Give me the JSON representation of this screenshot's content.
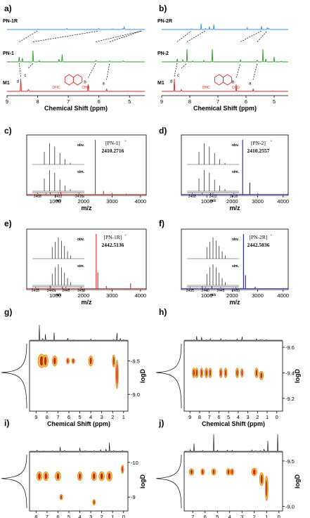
{
  "panels": {
    "a": {
      "label": "a)",
      "xlabel": "Chemical Shift (ppm)",
      "xlim": [
        9,
        4.5
      ],
      "ticks": [
        "9",
        "8",
        "7",
        "6",
        "5"
      ],
      "traces": [
        {
          "name": "PN-1R",
          "color": "#3b8fe0",
          "peaks": [
            [
              8.0,
              0.15
            ],
            [
              7.05,
              0.55
            ],
            [
              6.0,
              0.6
            ],
            [
              5.55,
              0.35
            ],
            [
              5.22,
              0.55
            ],
            [
              5.18,
              1.0
            ],
            [
              4.6,
              0.05
            ]
          ]
        },
        {
          "name": "PN-1",
          "color": "#2e9e2e",
          "peaks": [
            [
              8.6,
              0.4
            ],
            [
              8.5,
              0.3
            ],
            [
              8.15,
              0.9
            ],
            [
              7.95,
              0.45
            ],
            [
              7.3,
              0.5
            ],
            [
              7.2,
              0.35
            ],
            [
              6.1,
              0.7
            ],
            [
              5.65,
              0.55
            ],
            [
              5.2,
              0.6
            ]
          ]
        },
        {
          "name": "M1",
          "color": "#e02020",
          "peaks": [
            [
              8.55,
              0.6
            ],
            [
              8.3,
              1.0
            ],
            [
              6.35,
              0.55
            ],
            [
              5.75,
              0.45
            ],
            [
              5.05,
              0.08
            ]
          ]
        }
      ],
      "peak_letters": [
        "d",
        "c",
        "b",
        "a"
      ],
      "structure_labels": {
        "left": "OHC",
        "right": "CHO"
      }
    },
    "b": {
      "label": "b)",
      "xlabel": "Chemical Shift (ppm)",
      "xlim": [
        9,
        4.5
      ],
      "ticks": [
        "9",
        "8",
        "7",
        "6",
        "5"
      ],
      "traces": [
        {
          "name": "PN-2R",
          "color": "#3b8fe0",
          "peaks": [
            [
              7.95,
              0.35
            ],
            [
              7.6,
              0.7
            ],
            [
              7.45,
              0.9
            ],
            [
              7.3,
              0.8
            ],
            [
              7.15,
              0.6
            ],
            [
              5.95,
              0.5
            ],
            [
              5.45,
              0.4
            ],
            [
              5.25,
              0.85
            ],
            [
              5.2,
              1.0
            ]
          ]
        },
        {
          "name": "PN-2",
          "color": "#2e9e2e",
          "peaks": [
            [
              8.45,
              0.55
            ],
            [
              8.25,
              0.8
            ],
            [
              8.1,
              0.6
            ],
            [
              7.9,
              0.5
            ],
            [
              7.5,
              0.45
            ],
            [
              7.2,
              0.6
            ],
            [
              6.2,
              0.4
            ],
            [
              5.6,
              0.9
            ],
            [
              5.4,
              0.6
            ],
            [
              5.3,
              0.55
            ],
            [
              5.0,
              0.4
            ],
            [
              4.75,
              0.35
            ]
          ]
        },
        {
          "name": "M1",
          "color": "#e02020",
          "peaks": [
            [
              8.55,
              0.6
            ],
            [
              8.3,
              1.0
            ],
            [
              6.35,
              0.55
            ],
            [
              5.75,
              0.45
            ],
            [
              5.05,
              0.08
            ]
          ]
        }
      ],
      "peak_letters": [
        "d",
        "c",
        "b",
        "a"
      ],
      "structure_labels": {
        "left": "OHC",
        "right": "CHO"
      }
    },
    "c": {
      "label": "c)",
      "ion": "[PN-1]",
      "charge": "+",
      "mass": "2410.2716",
      "color": "#e02020",
      "xlabel": "m/z",
      "xlim": [
        0,
        4200
      ],
      "ticks": [
        "1000",
        "2000",
        "3000",
        "4000"
      ],
      "peaks": [
        [
          680,
          0.03
        ],
        [
          830,
          0.04
        ],
        [
          1200,
          0.05
        ],
        [
          2410,
          1.0
        ],
        [
          2700,
          0.07
        ],
        [
          3000,
          0.03
        ],
        [
          3500,
          0.02
        ]
      ],
      "inset": {
        "obs_label": "obv.",
        "sim_label": "sim.",
        "xlabel": "m/z",
        "ticks": [
          "2408",
          "2412",
          "2416"
        ],
        "xlim": [
          2407,
          2417
        ],
        "obs": [
          [
            2409.3,
            0.6
          ],
          [
            2410.3,
            1.0
          ],
          [
            2411.3,
            0.85
          ],
          [
            2412.3,
            0.55
          ],
          [
            2413.3,
            0.25
          ],
          [
            2414.3,
            0.08
          ]
        ],
        "sim": [
          [
            2409.3,
            0.6
          ],
          [
            2410.3,
            1.0
          ],
          [
            2411.3,
            0.88
          ],
          [
            2412.3,
            0.55
          ],
          [
            2413.3,
            0.27
          ],
          [
            2414.3,
            0.1
          ]
        ]
      }
    },
    "d": {
      "label": "d)",
      "ion": "[PN-2]",
      "charge": "+",
      "mass": "2410.2557",
      "color": "#1a1ab8",
      "xlabel": "m/z",
      "xlim": [
        0,
        4200
      ],
      "ticks": [
        "1000",
        "2000",
        "3000",
        "4000"
      ],
      "peaks": [
        [
          820,
          0.03
        ],
        [
          1150,
          0.03
        ],
        [
          2410,
          1.0
        ],
        [
          2690,
          0.22
        ],
        [
          3000,
          0.02
        ]
      ],
      "inset": {
        "obs_label": "obv.",
        "sim_label": "sim.",
        "xlabel": "m/z",
        "ticks": [
          "2408",
          "2412",
          "2416"
        ],
        "xlim": [
          2407,
          2417
        ],
        "obs": [
          [
            2409.3,
            0.6
          ],
          [
            2410.3,
            1.0
          ],
          [
            2411.3,
            0.85
          ],
          [
            2412.3,
            0.55
          ],
          [
            2413.3,
            0.25
          ],
          [
            2414.3,
            0.08
          ]
        ],
        "sim": [
          [
            2409.3,
            0.6
          ],
          [
            2410.3,
            1.0
          ],
          [
            2411.3,
            0.88
          ],
          [
            2412.3,
            0.55
          ],
          [
            2413.3,
            0.27
          ],
          [
            2414.3,
            0.1
          ]
        ]
      }
    },
    "e": {
      "label": "e)",
      "ion": "[PN-1R]",
      "charge": "+",
      "mass": "2442.5136",
      "color": "#e02020",
      "xlabel": "m/z",
      "xlim": [
        0,
        4200
      ],
      "ticks": [
        "1000",
        "2000",
        "3000",
        "4000"
      ],
      "peaks": [
        [
          820,
          0.06
        ],
        [
          1250,
          0.04
        ],
        [
          2442,
          1.0
        ],
        [
          2500,
          0.3
        ],
        [
          2800,
          0.05
        ],
        [
          3650,
          0.1
        ]
      ],
      "inset": {
        "obs_label": "obv.",
        "sim_label": "sim.",
        "xlabel": "m/z",
        "ticks": [
          "2435",
          "2440",
          "2445",
          "2450"
        ],
        "xlim": [
          2434,
          2451
        ],
        "obs": [
          [
            2440.5,
            0.55
          ],
          [
            2441.5,
            0.8
          ],
          [
            2442.5,
            1.0
          ],
          [
            2443.5,
            0.85
          ],
          [
            2444.5,
            0.6
          ],
          [
            2445.5,
            0.35
          ],
          [
            2446.5,
            0.15
          ]
        ],
        "sim": [
          [
            2440.5,
            0.55
          ],
          [
            2441.5,
            0.85
          ],
          [
            2442.5,
            1.0
          ],
          [
            2443.5,
            0.85
          ],
          [
            2444.5,
            0.6
          ],
          [
            2445.5,
            0.35
          ],
          [
            2446.5,
            0.15
          ]
        ]
      }
    },
    "f": {
      "label": "f)",
      "ion": "[PN-2R]",
      "charge": "+",
      "mass": "2442.5036",
      "color": "#1a1ab8",
      "xlabel": "m/z",
      "xlim": [
        0,
        4200
      ],
      "ticks": [
        "1000",
        "2000",
        "3000",
        "4000"
      ],
      "peaks": [
        [
          820,
          0.05
        ],
        [
          1200,
          0.05
        ],
        [
          2442,
          1.0
        ],
        [
          2520,
          0.25
        ],
        [
          2900,
          0.04
        ]
      ],
      "inset": {
        "obs_label": "obv.",
        "sim_label": "sim.",
        "xlabel": "m/z",
        "ticks": [
          "2435",
          "2440",
          "2445",
          "2450"
        ],
        "xlim": [
          2434,
          2451
        ],
        "obs": [
          [
            2440.5,
            0.55
          ],
          [
            2441.5,
            0.8
          ],
          [
            2442.5,
            1.0
          ],
          [
            2443.5,
            0.85
          ],
          [
            2444.5,
            0.6
          ],
          [
            2445.5,
            0.35
          ],
          [
            2446.5,
            0.15
          ]
        ],
        "sim": [
          [
            2440.5,
            0.55
          ],
          [
            2441.5,
            0.85
          ],
          [
            2442.5,
            1.0
          ],
          [
            2443.5,
            0.85
          ],
          [
            2444.5,
            0.6
          ],
          [
            2445.5,
            0.35
          ],
          [
            2446.5,
            0.15
          ]
        ]
      }
    },
    "g": {
      "label": "g)",
      "xlabel": "Chemical Shift (ppm)",
      "ylabel": "logD",
      "xlim": [
        9.6,
        0.6
      ],
      "ylim": [
        -8.75,
        -9.8
      ],
      "xticks": [
        "9",
        "8",
        "7",
        "6",
        "5",
        "4",
        "3",
        "2",
        "1"
      ],
      "yticks": [
        "-9.5",
        "-9.0"
      ],
      "spectrum": [
        [
          8.7,
          0.8
        ],
        [
          8.4,
          1.0
        ],
        [
          8.15,
          0.7
        ],
        [
          7.35,
          0.4
        ],
        [
          6.1,
          0.25
        ],
        [
          5.6,
          0.2
        ],
        [
          4.0,
          0.35
        ],
        [
          3.6,
          0.15
        ],
        [
          1.9,
          0.5
        ],
        [
          1.6,
          0.85
        ],
        [
          1.3,
          0.6
        ],
        [
          1.0,
          0.3
        ]
      ],
      "spots": [
        [
          8.5,
          -9.5,
          0.5,
          0.17
        ],
        [
          8.15,
          -9.5,
          0.35,
          0.15
        ],
        [
          7.3,
          -9.5,
          0.3,
          0.12
        ],
        [
          6.1,
          -9.5,
          0.12,
          0.06
        ],
        [
          5.6,
          -9.5,
          0.12,
          0.05
        ],
        [
          4.0,
          -9.5,
          0.25,
          0.12
        ],
        [
          1.9,
          -9.5,
          0.1,
          0.15
        ],
        [
          1.6,
          -9.3,
          0.1,
          0.4
        ]
      ]
    },
    "h": {
      "label": "h)",
      "xlabel": "Chemical Shift (ppm)",
      "ylabel": "logD",
      "xlim": [
        9.6,
        -0.6
      ],
      "ylim": [
        -9.1,
        -9.65
      ],
      "xticks": [
        "9",
        "8",
        "7",
        "6",
        "5",
        "4",
        "3",
        "2",
        "1",
        "0"
      ],
      "yticks": [
        "-9.6",
        "-9.4",
        "-9.2"
      ],
      "spectrum": [
        [
          8.6,
          0.5
        ],
        [
          8.3,
          0.6
        ],
        [
          7.8,
          0.4
        ],
        [
          7.3,
          0.45
        ],
        [
          6.9,
          0.3
        ],
        [
          5.8,
          0.25
        ],
        [
          5.3,
          0.3
        ],
        [
          4.1,
          0.3
        ],
        [
          3.6,
          0.25
        ],
        [
          2.1,
          0.35
        ],
        [
          1.7,
          0.55
        ],
        [
          1.5,
          0.45
        ],
        [
          1.1,
          0.3
        ]
      ],
      "spots": [
        [
          8.6,
          -9.4,
          0.15,
          0.06
        ],
        [
          8.3,
          -9.4,
          0.15,
          0.06
        ],
        [
          7.8,
          -9.4,
          0.12,
          0.06
        ],
        [
          7.3,
          -9.4,
          0.15,
          0.06
        ],
        [
          6.9,
          -9.4,
          0.12,
          0.06
        ],
        [
          5.8,
          -9.4,
          0.12,
          0.06
        ],
        [
          5.3,
          -9.4,
          0.12,
          0.06
        ],
        [
          4.1,
          -9.4,
          0.15,
          0.06
        ],
        [
          3.6,
          -9.4,
          0.1,
          0.05
        ],
        [
          2.1,
          -9.4,
          0.15,
          0.06
        ],
        [
          1.6,
          -9.38,
          0.25,
          0.05
        ]
      ]
    },
    "i": {
      "label": "i)",
      "xlabel": "Chemical Shift (ppm)",
      "ylabel": "logD",
      "xlim": [
        8.6,
        -0.4
      ],
      "ylim": [
        -8.6,
        -10.3
      ],
      "xticks": [
        "8",
        "7",
        "6",
        "5",
        "4",
        "3",
        "2",
        "1",
        "0"
      ],
      "yticks": [
        "-10",
        "-9"
      ],
      "spectrum": [
        [
          7.9,
          0.3
        ],
        [
          7.3,
          0.25
        ],
        [
          6.5,
          0.35
        ],
        [
          5.8,
          0.5
        ],
        [
          5.4,
          0.85
        ],
        [
          4.0,
          0.4
        ],
        [
          3.5,
          0.35
        ],
        [
          2.7,
          0.6
        ],
        [
          2.1,
          0.45
        ],
        [
          1.6,
          0.7
        ],
        [
          1.3,
          1.0
        ],
        [
          0.9,
          0.5
        ],
        [
          0.1,
          0.8
        ]
      ],
      "spots": [
        [
          7.7,
          -9.6,
          0.35,
          0.2
        ],
        [
          7.1,
          -9.6,
          0.3,
          0.2
        ],
        [
          6.0,
          -9.6,
          0.35,
          0.2
        ],
        [
          5.7,
          -9.0,
          0.12,
          0.1
        ],
        [
          4.0,
          -9.6,
          0.25,
          0.2
        ],
        [
          2.7,
          -9.6,
          0.3,
          0.2
        ],
        [
          2.7,
          -8.85,
          0.1,
          0.1
        ],
        [
          2.0,
          -9.6,
          0.35,
          0.2
        ],
        [
          1.3,
          -9.6,
          0.35,
          0.22
        ],
        [
          0.1,
          -9.8,
          0.08,
          0.18
        ]
      ]
    },
    "j": {
      "label": "j)",
      "xlabel": "Chemical Shift (ppm)",
      "ylabel": "logD",
      "xlim": [
        7.7,
        -0.3
      ],
      "ylim": [
        -8.95,
        -9.6
      ],
      "xticks": [
        "7",
        "6",
        "5",
        "4",
        "3",
        "2",
        "1",
        "0"
      ],
      "yticks": [
        "-9.5",
        "-9.0"
      ],
      "spectrum": [
        [
          7.2,
          0.6
        ],
        [
          6.9,
          0.4
        ],
        [
          6.2,
          0.3
        ],
        [
          5.3,
          0.9
        ],
        [
          5.0,
          0.4
        ],
        [
          4.2,
          0.4
        ],
        [
          3.8,
          0.35
        ],
        [
          2.2,
          0.5
        ],
        [
          1.9,
          0.6
        ],
        [
          1.5,
          0.75
        ],
        [
          1.2,
          0.8
        ],
        [
          0.9,
          0.55
        ],
        [
          0.1,
          0.9
        ]
      ],
      "spots": [
        [
          7.1,
          -9.38,
          0.25,
          0.05
        ],
        [
          6.2,
          -9.38,
          0.15,
          0.05
        ],
        [
          5.3,
          -9.38,
          0.2,
          0.05
        ],
        [
          4.1,
          -9.38,
          0.2,
          0.05
        ],
        [
          3.8,
          -9.38,
          0.12,
          0.05
        ],
        [
          2.0,
          -9.38,
          0.3,
          0.06
        ],
        [
          1.4,
          -9.3,
          0.2,
          0.12
        ],
        [
          1.0,
          -9.2,
          0.1,
          0.25
        ]
      ]
    }
  }
}
